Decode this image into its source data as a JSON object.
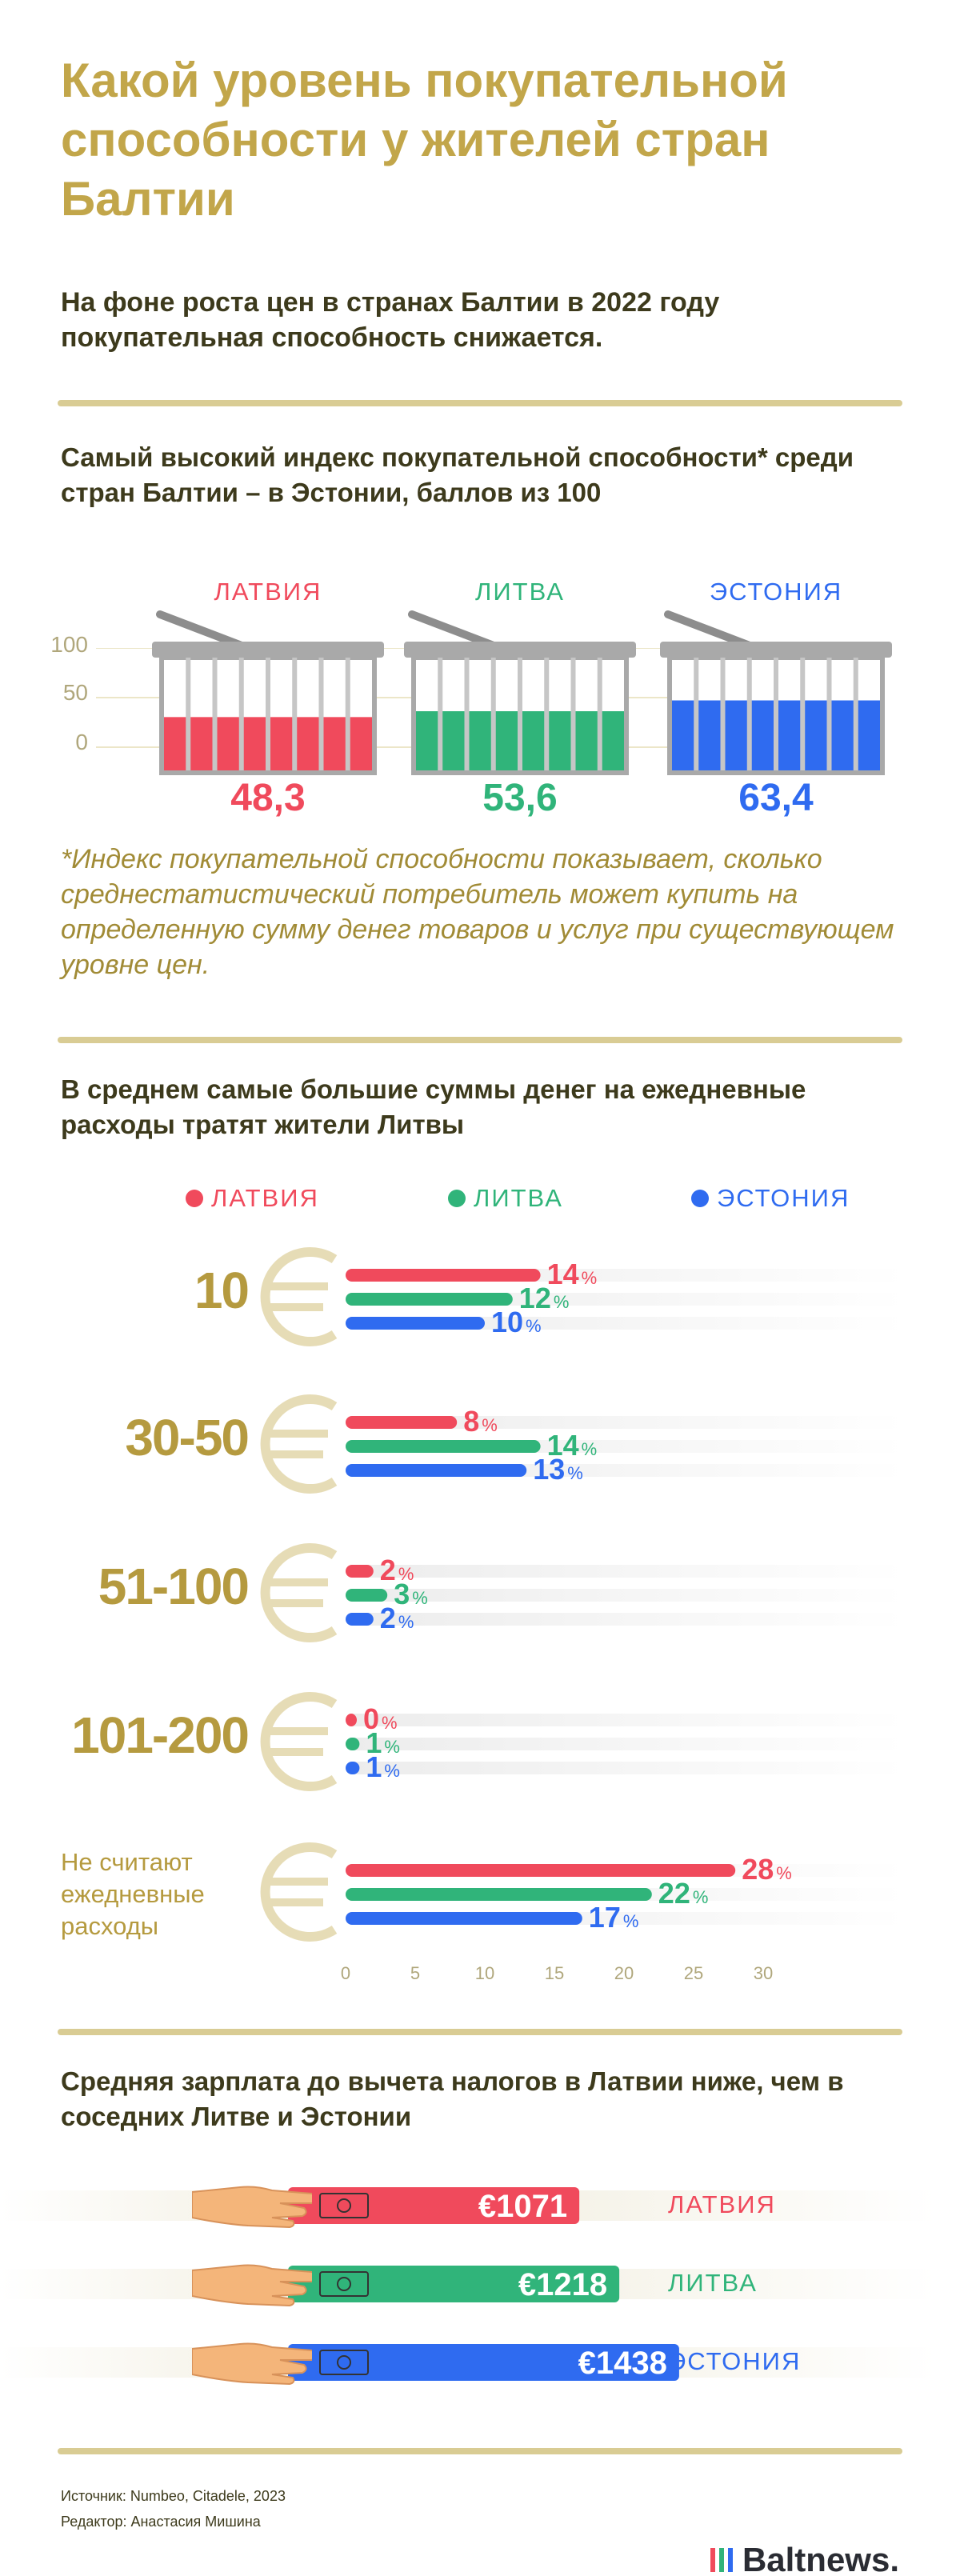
{
  "header": {
    "title": "Какой уровень покупательной способности у жителей стран Балтии",
    "subtitle": "На фоне роста цен в странах Балтии в 2022 году покупательная способность снижается."
  },
  "colors": {
    "latvia": "#f04a5c",
    "lithuania": "#30b47a",
    "estonia": "#2f6bf0",
    "gold": "#c2a64a"
  },
  "section1": {
    "heading": "Самый высокий индекс покупательной способности* среди стран Балтии – в Эстонии, баллов из 100",
    "footnote": "*Индекс покупательной способности показывает, сколько среднестатистический потребитель может купить на определенную сумму денег товаров и услуг при существующем уровне цен."
  },
  "section2": {
    "heading": "В среднем самые большие суммы денег на ежедневные расходы тратят жители Литвы",
    "legend": [
      "ЛАТВИЯ",
      "ЛИТВА",
      "ЭСТОНИЯ"
    ]
  },
  "section3": {
    "heading": "Средняя зарплата до вычета налогов в Латвии ниже, чем в соседних Литве и Эстонии"
  },
  "footer": {
    "source": "Источник: Numbeo, Citadele, 2023",
    "editor": "Редактор: Анастасия Мишина",
    "logo": "Baltnews."
  },
  "chart_data": [
    {
      "type": "bar",
      "title": "Индекс покупательной способности",
      "categories": [
        "ЛАТВИЯ",
        "ЛИТВА",
        "ЭСТОНИЯ"
      ],
      "values": [
        48.3,
        53.6,
        63.4
      ],
      "value_labels": [
        "48,3",
        "53,6",
        "63,4"
      ],
      "ylim": [
        0,
        100
      ],
      "yticks": [
        "0",
        "50",
        "100"
      ]
    },
    {
      "type": "bar",
      "orientation": "horizontal",
      "title": "Ежедневные расходы",
      "categories": [
        "10",
        "30-50",
        "51-100",
        "101-200",
        "Не считают ежедневные расходы"
      ],
      "series": [
        {
          "name": "ЛАТВИЯ",
          "values": [
            14,
            8,
            2,
            0,
            28
          ]
        },
        {
          "name": "ЛИТВА",
          "values": [
            12,
            14,
            3,
            1,
            22
          ]
        },
        {
          "name": "ЭСТОНИЯ",
          "values": [
            10,
            13,
            2,
            1,
            17
          ]
        }
      ],
      "xlim": [
        0,
        30
      ],
      "xticks": [
        "0",
        "5",
        "10",
        "15",
        "20",
        "25",
        "30"
      ],
      "unit": "%"
    },
    {
      "type": "bar",
      "orientation": "horizontal",
      "title": "Средняя зарплата до вычета налогов",
      "categories": [
        "ЛАТВИЯ",
        "ЛИТВА",
        "ЭСТОНИЯ"
      ],
      "values": [
        1071,
        1218,
        1438
      ],
      "value_labels": [
        "€1071",
        "€1218",
        "€1438"
      ]
    }
  ]
}
